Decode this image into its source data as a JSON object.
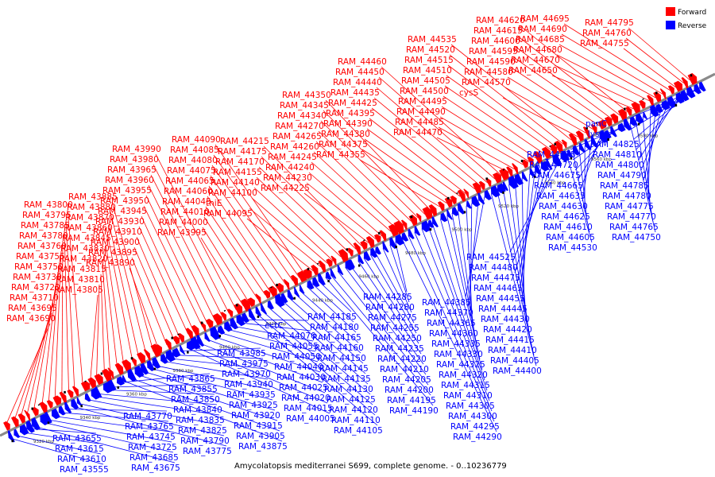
{
  "legend": {
    "forward_label": "Forward",
    "reverse_label": "Reverse",
    "forward_color": "#ff0000",
    "reverse_color": "#0000ff"
  },
  "caption": "Amycolatopsis mediterranei S699, complete genome. - 0..10236779",
  "axis": {
    "ticks": [
      "9320 kbp",
      "9340 kbp",
      "9360 kbp",
      "9380 kbp",
      "9400 kbp",
      "9420 kbp",
      "9440 kbp",
      "9460 kbp",
      "9480 kbp",
      "9500 kbp",
      "9520 kbp",
      "9540 kbp",
      "9560 kbp",
      "9580 kbp"
    ]
  },
  "forward_genes": [
    "RAM_43690",
    "RAM_43695",
    "RAM_43710",
    "RAM_43720",
    "RAM_43730",
    "RAM_43750",
    "RAM_43755",
    "RAM_43760",
    "RAM_43780",
    "RAM_43785",
    "RAM_43795",
    "RAM_43800",
    "RAM_43805",
    "RAM_43810",
    "RAM_43815",
    "RAM_43820",
    "RAM_43830",
    "RAM_43845",
    "RAM_43860",
    "RAM_43870",
    "RAM_43880",
    "RAM_43885",
    "RAM_43890",
    "RAM_43895",
    "RAM_43900",
    "RAM_43910",
    "RAM_43930",
    "RAM_43945",
    "RAM_43950",
    "RAM_43955",
    "RAM_43960",
    "RAM_43965",
    "RAM_43980",
    "RAM_43990",
    "RAM_43995",
    "RAM_44000",
    "RAM_44010",
    "RAM_44045",
    "RAM_44060",
    "RAM_44065",
    "RAM_44075",
    "RAM_44080",
    "RAM_44085",
    "RAM_44090",
    "RAM_44095",
    "thiE",
    "RAM_44100",
    "RAM_44140",
    "RAM_44155",
    "RAM_44170",
    "RAM_44175",
    "RAM_44215",
    "RAM_44225",
    "RAM_44230",
    "RAM_44240",
    "RAM_44245",
    "RAM_44260",
    "RAM_44265",
    "RAM_44270",
    "RAM_44340",
    "RAM_44345",
    "RAM_44350",
    "RAM_44355",
    "RAM_44375",
    "RAM_44380",
    "RAM_44390",
    "RAM_44395",
    "RAM_44425",
    "RAM_44435",
    "RAM_44440",
    "RAM_44450",
    "RAM_44460",
    "RAM_44470",
    "RAM_44485",
    "RAM_44490",
    "RAM_44495",
    "RAM_44500",
    "RAM_44505",
    "RAM_44510",
    "RAM_44515",
    "RAM_44520",
    "RAM_44535",
    "cysS",
    "RAM_44570",
    "RAM_44580",
    "RAM_44590",
    "RAM_44595",
    "RAM_44600",
    "RAM_44615",
    "RAM_44620",
    "RAM_44650",
    "RAM_44670",
    "RAM_44680",
    "RAM_44685",
    "RAM_44690",
    "RAM_44695",
    "RAM_44755",
    "RAM_44760",
    "RAM_44795"
  ],
  "reverse_genes": [
    "RAM_43555",
    "RAM_43610",
    "RAM_43615",
    "RAM_43655",
    "RAM_43675",
    "RAM_43685",
    "RAM_43725",
    "RAM_43745",
    "RAM_43765",
    "RAM_43770",
    "RAM_43775",
    "RAM_43790",
    "RAM_43825",
    "RAM_43835",
    "RAM_43840",
    "RAM_43850",
    "RAM_43855",
    "RAM_43865",
    "RAM_43875",
    "RAM_43905",
    "RAM_43915",
    "RAM_43920",
    "RAM_43925",
    "RAM_43935",
    "RAM_43940",
    "RAM_43970",
    "RAM_43975",
    "RAM_43985",
    "RAM_44005",
    "RAM_44015",
    "RAM_44020",
    "RAM_44025",
    "RAM_44030",
    "RAM_44040",
    "RAM_44050",
    "RAM_44055",
    "RAM_44070",
    "ectC",
    "RAM_44105",
    "RAM_44110",
    "RAM_44120",
    "RAM_44125",
    "RAM_44130",
    "RAM_44135",
    "RAM_44145",
    "RAM_44150",
    "RAM_44160",
    "RAM_44165",
    "RAM_44180",
    "RAM_44185",
    "RAM_44190",
    "RAM_44195",
    "RAM_44200",
    "RAM_44205",
    "RAM_44210",
    "RAM_44220",
    "RAM_44235",
    "RAM_44250",
    "RAM_44255",
    "RAM_44275",
    "RAM_44280",
    "RAM_44285",
    "RAM_44290",
    "RAM_44295",
    "RAM_44300",
    "RAM_44305",
    "RAM_44310",
    "RAM_44315",
    "RAM_44320",
    "RAM_44325",
    "RAM_44330",
    "RAM_44335",
    "RAM_44360",
    "RAM_44365",
    "RAM_44370",
    "RAM_44385",
    "RAM_44400",
    "RAM_44405",
    "RAM_44410",
    "RAM_44415",
    "RAM_44420",
    "RAM_44430",
    "RAM_44445",
    "RAM_44455",
    "RAM_44465",
    "RAM_44475",
    "RAM_44480",
    "RAM_44525",
    "RAM_44530",
    "RAM_44605",
    "RAM_44610",
    "RAM_44625",
    "RAM_44630",
    "RAM_44635",
    "RAM_44665",
    "RAM_44675",
    "RAM_44720",
    "RAM_44735",
    "RAM_44750",
    "RAM_44765",
    "RAM_44770",
    "RAM_44775",
    "RAM_44780",
    "RAM_44785",
    "RAM_44790",
    "RAM_44800",
    "RAM_44810",
    "RAM_44825",
    "lysS",
    "panC"
  ]
}
